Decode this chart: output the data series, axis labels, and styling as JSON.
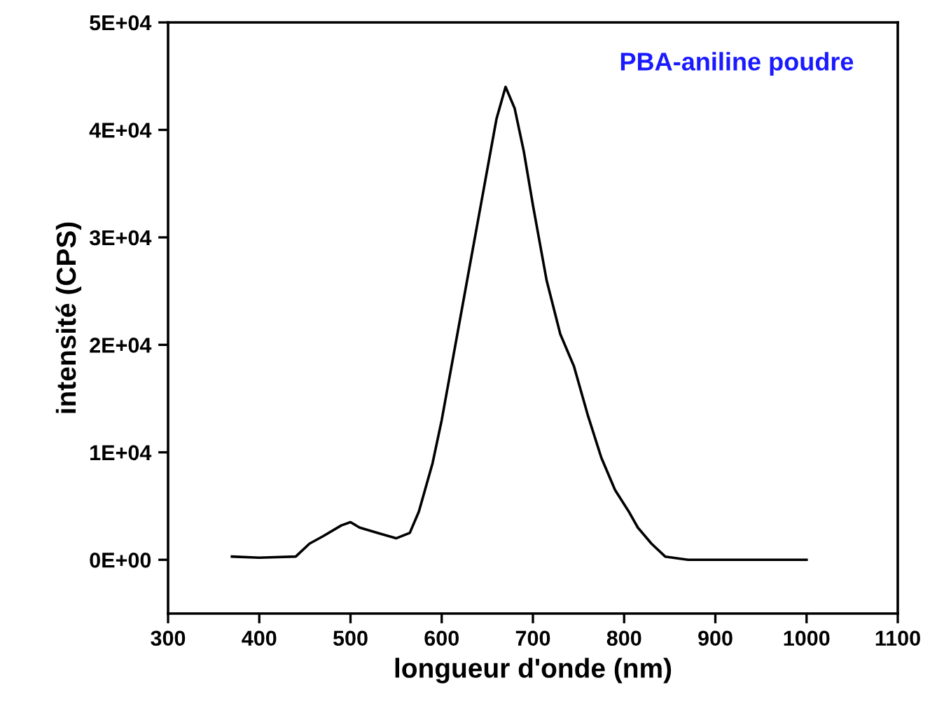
{
  "chart_data": {
    "type": "line",
    "xlabel": "longueur d'onde (nm)",
    "ylabel": "intensité (CPS)",
    "annotations": [
      "PBA-aniline poudre"
    ],
    "series": [
      {
        "color": "#000000",
        "x": [
          370,
          400,
          440,
          455,
          470,
          490,
          500,
          510,
          530,
          550,
          565,
          575,
          590,
          600,
          615,
          630,
          645,
          660,
          670,
          680,
          690,
          700,
          715,
          730,
          745,
          760,
          775,
          790,
          805,
          815,
          830,
          845,
          870,
          900,
          950,
          1000
        ],
        "values": [
          300,
          200,
          300,
          1500,
          2200,
          3200,
          3500,
          3000,
          2500,
          2000,
          2500,
          4500,
          9000,
          13000,
          20000,
          27000,
          34000,
          41000,
          44000,
          42000,
          38000,
          33000,
          26000,
          21000,
          18000,
          13500,
          9500,
          6500,
          4500,
          3000,
          1500,
          300,
          0,
          0,
          0,
          0
        ]
      }
    ],
    "xlim": [
      300,
      1100
    ],
    "xticks": [
      300,
      400,
      500,
      600,
      700,
      800,
      900,
      1000,
      1100
    ],
    "ylim": [
      -5000,
      50000
    ],
    "yticks": [
      {
        "value": 0,
        "label": "0E+00"
      },
      {
        "value": 10000,
        "label": "1E+04"
      },
      {
        "value": 20000,
        "label": "2E+04"
      },
      {
        "value": 30000,
        "label": "3E+04"
      },
      {
        "value": 40000,
        "label": "4E+04"
      },
      {
        "value": 50000,
        "label": "5E+04"
      }
    ],
    "grid": false,
    "legend": false,
    "marker": "none",
    "line_style": "solid"
  }
}
